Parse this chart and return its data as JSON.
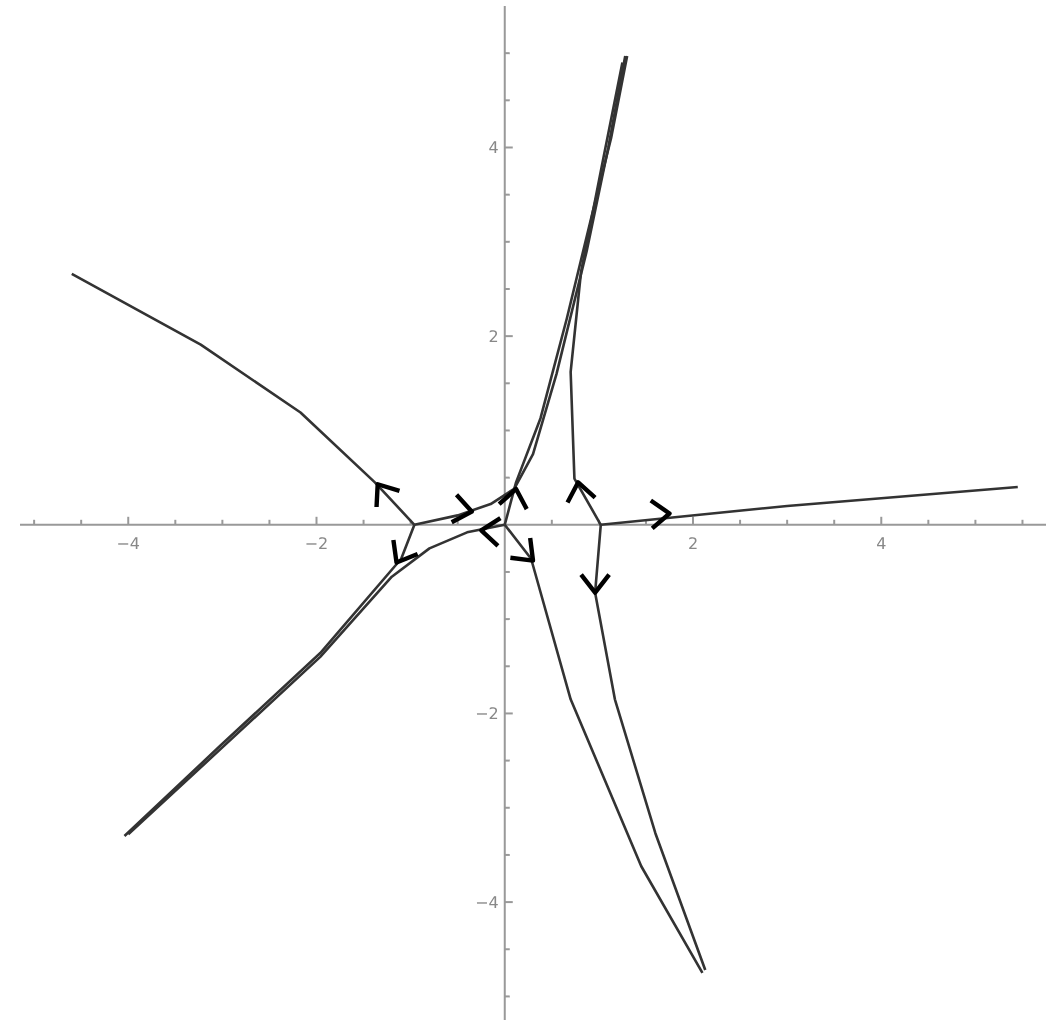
{
  "chart_data": {
    "type": "line",
    "xlim": [
      -5.15,
      5.75
    ],
    "ylim": [
      -5.25,
      5.5
    ],
    "xticks": [
      {
        "value": -5,
        "label": null
      },
      {
        "value": -4.5,
        "label": null
      },
      -4,
      {
        "value": -3.5,
        "label": null
      },
      {
        "value": -3,
        "label": null
      },
      {
        "value": -2.5,
        "label": null
      },
      -2,
      {
        "value": -1.5,
        "label": null
      },
      {
        "value": -1,
        "label": null
      },
      {
        "value": -0.5,
        "label": null
      },
      {
        "value": 0.5,
        "label": null
      },
      {
        "value": 1,
        "label": null
      },
      {
        "value": 1.5,
        "label": null
      },
      2,
      {
        "value": 2.5,
        "label": null
      },
      {
        "value": 3,
        "label": null
      },
      {
        "value": 3.5,
        "label": null
      },
      4,
      {
        "value": 4.5,
        "label": null
      },
      {
        "value": 5,
        "label": null
      },
      {
        "value": 5.5,
        "label": null
      }
    ],
    "yticks": [
      {
        "value": -5,
        "label": null
      },
      {
        "value": -4.5,
        "label": null
      },
      -4,
      {
        "value": -3.5,
        "label": null
      },
      {
        "value": -3,
        "label": null
      },
      {
        "value": -2.5,
        "label": null
      },
      -2,
      {
        "value": -1.5,
        "label": null
      },
      {
        "value": -1,
        "label": null
      },
      {
        "value": -0.5,
        "label": null
      },
      {
        "value": 0.5,
        "label": null
      },
      {
        "value": 1,
        "label": null
      },
      {
        "value": 1.5,
        "label": null
      },
      2,
      {
        "value": 2.5,
        "label": null
      },
      {
        "value": 3,
        "label": null
      },
      {
        "value": 3.5,
        "label": null
      },
      4,
      {
        "value": 4.5,
        "label": null
      },
      {
        "value": 5,
        "label": null
      }
    ],
    "grid": false,
    "marker": "none",
    "line_style": "solid",
    "series": [
      {
        "color": "#333333",
        "x": [
          -4.6,
          -3.23,
          -2.17,
          -1.38,
          -0.96
        ],
        "values": [
          2.66,
          1.91,
          1.19,
          0.45,
          0
        ]
      },
      {
        "color": "#333333",
        "x": [
          -0.96,
          -1.1,
          -1.96,
          -3.02,
          -4.04
        ],
        "values": [
          0,
          -0.36,
          -1.36,
          -2.34,
          -3.3
        ]
      },
      {
        "color": "#333333",
        "x": [
          0,
          -0.4,
          -0.8,
          -1.2,
          -1.96,
          -3.0,
          -4.0
        ],
        "values": [
          0,
          -0.08,
          -0.25,
          -0.55,
          -1.4,
          -2.36,
          -3.28
        ]
      },
      {
        "color": "#333333",
        "x": [
          -0.96,
          -0.5,
          -0.15,
          0.1,
          0.3,
          0.55,
          0.87,
          1.1,
          1.28
        ],
        "values": [
          0,
          0.1,
          0.22,
          0.38,
          0.75,
          1.6,
          2.9,
          4.0,
          4.97
        ]
      },
      {
        "color": "#333333",
        "x": [
          0,
          0.12,
          0.38,
          0.66,
          0.93,
          1.13,
          1.3
        ],
        "values": [
          0,
          0.45,
          1.13,
          2.19,
          3.3,
          4.1,
          4.97
        ]
      },
      {
        "color": "#333333",
        "x": [
          1.02,
          0.74,
          0.7,
          0.81,
          1.05,
          1.25
        ],
        "values": [
          0,
          0.49,
          1.62,
          2.68,
          3.9,
          4.9
        ]
      },
      {
        "color": "#333333",
        "x": [
          1.02,
          3.0,
          5.45
        ],
        "values": [
          0,
          0.2,
          0.4
        ]
      },
      {
        "color": "#333333",
        "x": [
          1.02,
          0.96,
          1.17,
          1.6,
          2.13
        ],
        "values": [
          0,
          -0.72,
          -1.85,
          -3.27,
          -4.72
        ]
      },
      {
        "color": "#333333",
        "x": [
          0,
          0.28,
          0.7,
          1.45,
          2.1
        ],
        "values": [
          0,
          -0.36,
          -1.85,
          -3.62,
          -4.75
        ]
      }
    ]
  }
}
